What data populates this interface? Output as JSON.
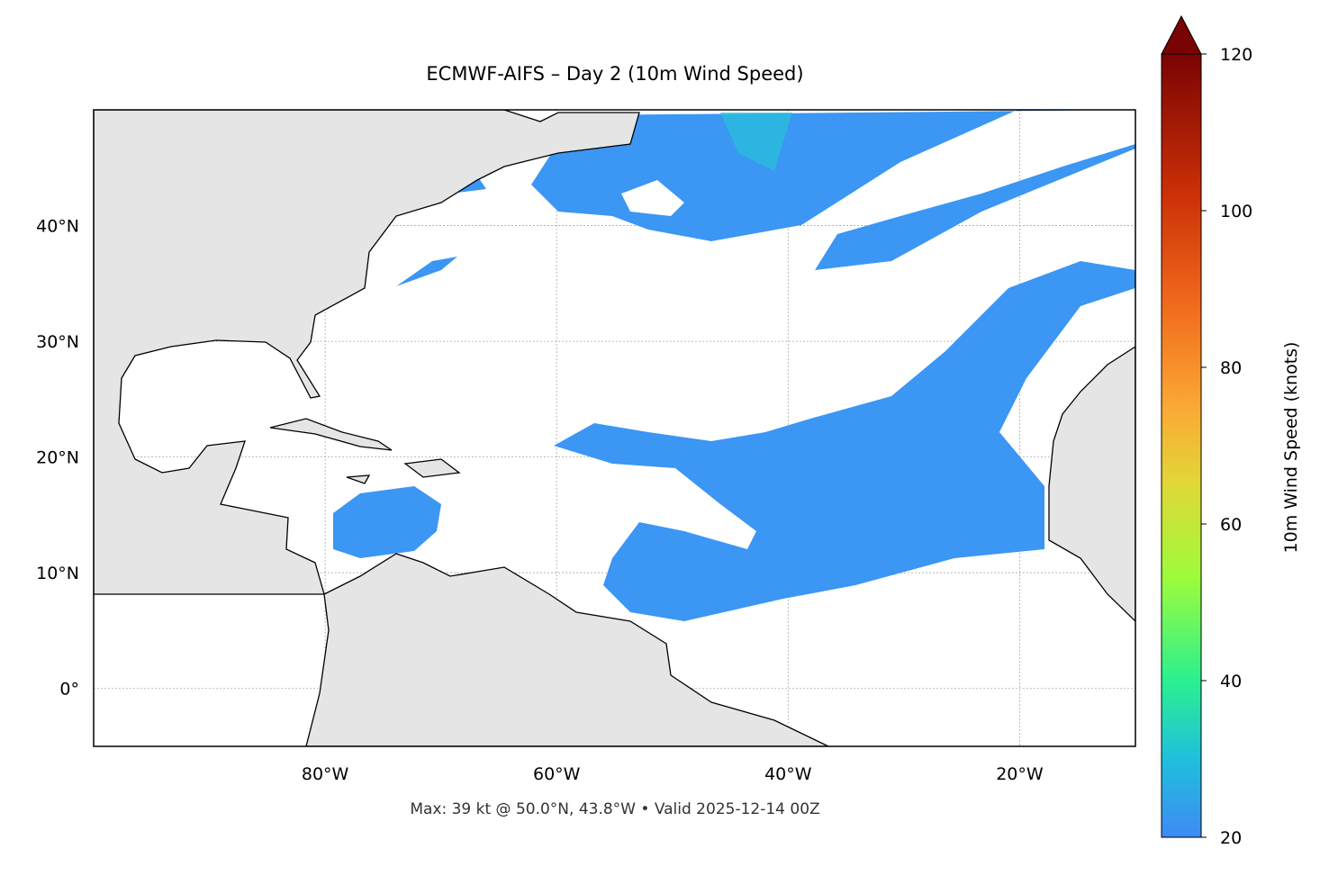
{
  "map": {
    "title": "ECMWF-AIFS – Day 2 (10m Wind Speed)",
    "footer": "Max: 39 kt @ 50.0°N, 43.8°W • Valid 2025-12-14 00Z",
    "xlim": [
      -100,
      -10
    ],
    "ylim": [
      -5,
      50
    ],
    "xticks": [
      {
        "value": -80,
        "label": "80°W"
      },
      {
        "value": -60,
        "label": "60°W"
      },
      {
        "value": -40,
        "label": "40°W"
      },
      {
        "value": -20,
        "label": "20°W"
      }
    ],
    "yticks": [
      {
        "value": 0,
        "label": "0°"
      },
      {
        "value": 10,
        "label": "10°N"
      },
      {
        "value": 20,
        "label": "20°N"
      },
      {
        "value": 30,
        "label": "30°N"
      },
      {
        "value": 40,
        "label": "40°N"
      }
    ],
    "colorbar": {
      "label": "10m Wind Speed (knots)",
      "lim": [
        20,
        120
      ],
      "ticks": [
        20,
        40,
        60,
        80,
        100,
        120
      ]
    }
  }
}
